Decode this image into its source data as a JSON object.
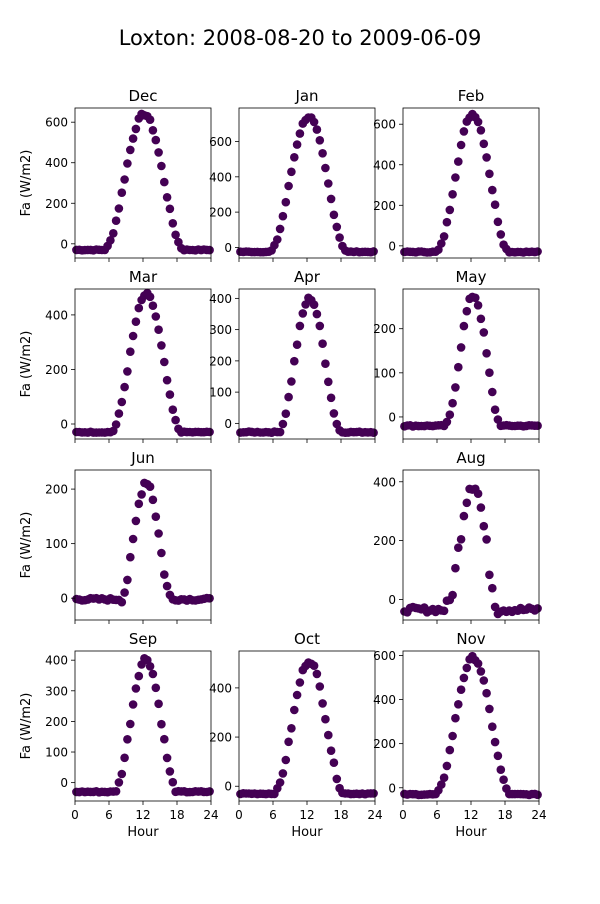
{
  "figure": {
    "title": "Loxton: 2008-08-20 to 2009-06-09",
    "xlabel": "Hour",
    "ylabel": "Fa (W/m2)",
    "point_color": "#440154",
    "x_ticks": [
      0,
      6,
      12,
      18,
      24
    ]
  },
  "chart_data": [
    {
      "type": "scatter",
      "title": "Dec",
      "xlim": [
        0,
        24
      ],
      "ylim": [
        -70,
        670
      ],
      "yticks": [
        0,
        200,
        400,
        600
      ],
      "peak": 640,
      "base": -30,
      "center": 12.2,
      "width": 3.4,
      "noise": 8
    },
    {
      "type": "scatter",
      "title": "Jan",
      "xlim": [
        0,
        24
      ],
      "ylim": [
        -60,
        790
      ],
      "yticks": [
        0,
        200,
        400,
        600
      ],
      "peak": 740,
      "base": -25,
      "center": 12.3,
      "width": 3.3,
      "noise": 8
    },
    {
      "type": "scatter",
      "title": "Feb",
      "xlim": [
        0,
        24
      ],
      "ylim": [
        -60,
        680
      ],
      "yticks": [
        0,
        200,
        400,
        600
      ],
      "peak": 650,
      "base": -30,
      "center": 12.3,
      "width": 3.1,
      "noise": 8
    },
    {
      "type": "scatter",
      "title": "Mar",
      "xlim": [
        0,
        24
      ],
      "ylim": [
        -55,
        495
      ],
      "yticks": [
        0,
        200,
        400
      ],
      "peak": 475,
      "base": -30,
      "center": 12.6,
      "width": 3.0,
      "noise": 6
    },
    {
      "type": "scatter",
      "title": "Apr",
      "xlim": [
        0,
        24
      ],
      "ylim": [
        -50,
        430
      ],
      "yticks": [
        0,
        100,
        200,
        300,
        400
      ],
      "peak": 400,
      "base": -28,
      "center": 12.5,
      "width": 2.7,
      "noise": 6
    },
    {
      "type": "scatter",
      "title": "May",
      "xlim": [
        0,
        24
      ],
      "ylim": [
        -50,
        290
      ],
      "yticks": [
        0,
        100,
        200
      ],
      "peak": 275,
      "base": -20,
      "center": 12.4,
      "width": 2.4,
      "noise": 5
    },
    {
      "type": "scatter",
      "title": "Jun",
      "xlim": [
        0,
        24
      ],
      "ylim": [
        -40,
        235
      ],
      "yticks": [
        0,
        100,
        200
      ],
      "peak": 215,
      "base": -2,
      "center": 12.6,
      "width": 2.2,
      "noise": 8
    },
    {
      "type": "empty"
    },
    {
      "type": "scatter",
      "title": "Aug",
      "xlim": [
        0,
        24
      ],
      "ylim": [
        -70,
        440
      ],
      "yticks": [
        0,
        200,
        400
      ],
      "peak": 400,
      "base": -35,
      "center": 12.3,
      "width": 2.3,
      "noise": 30
    },
    {
      "type": "scatter",
      "title": "Sep",
      "xlim": [
        0,
        24
      ],
      "ylim": [
        -60,
        430
      ],
      "yticks": [
        0,
        100,
        200,
        300,
        400
      ],
      "peak": 405,
      "base": -30,
      "center": 12.5,
      "width": 2.7,
      "noise": 7
    },
    {
      "type": "scatter",
      "title": "Oct",
      "xlim": [
        0,
        24
      ],
      "ylim": [
        -60,
        550
      ],
      "yticks": [
        0,
        200,
        400
      ],
      "peak": 510,
      "base": -30,
      "center": 12.4,
      "width": 3.0,
      "noise": 8
    },
    {
      "type": "scatter",
      "title": "Nov",
      "xlim": [
        0,
        24
      ],
      "ylim": [
        -60,
        620
      ],
      "yticks": [
        0,
        200,
        400,
        600
      ],
      "peak": 590,
      "base": -30,
      "center": 12.4,
      "width": 3.2,
      "noise": 8
    }
  ]
}
